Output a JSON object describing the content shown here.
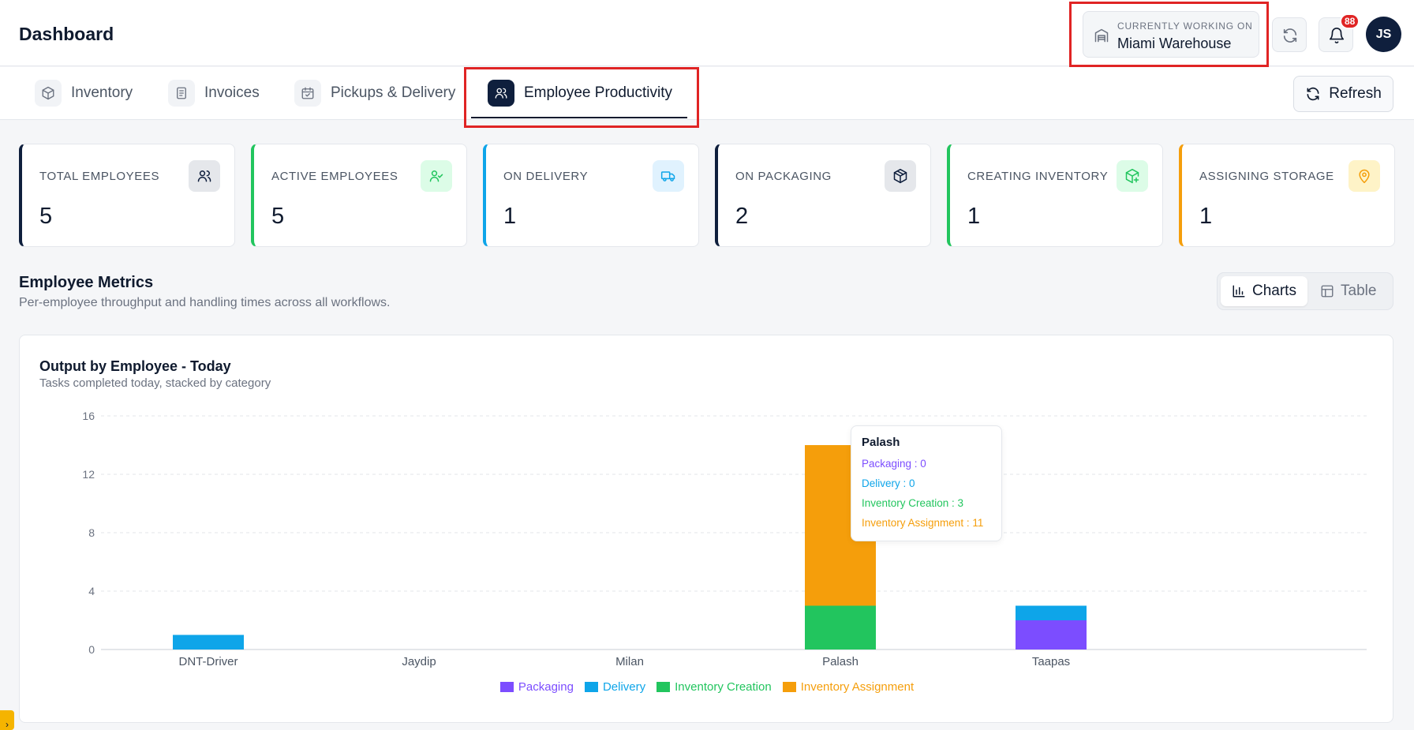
{
  "header": {
    "title": "Dashboard",
    "working_caption": "CURRENTLY WORKING ON",
    "working_value": "Miami Warehouse",
    "notification_count": "88",
    "avatar_initials": "JS"
  },
  "tabs": [
    {
      "label": "Inventory",
      "icon": "box-icon",
      "active": false
    },
    {
      "label": "Invoices",
      "icon": "document-icon",
      "active": false
    },
    {
      "label": "Pickups & Delivery",
      "icon": "calendar-check-icon",
      "active": false
    },
    {
      "label": "Employee Productivity",
      "icon": "users-icon",
      "active": true
    }
  ],
  "refresh_label": "Refresh",
  "stats": [
    {
      "label": "TOTAL EMPLOYEES",
      "value": "5",
      "accent": "#0f1f3d",
      "icon": "users-icon"
    },
    {
      "label": "ACTIVE EMPLOYEES",
      "value": "5",
      "accent": "#22c55e",
      "icon": "user-check-icon"
    },
    {
      "label": "ON DELIVERY",
      "value": "1",
      "accent": "#0ea5e9",
      "icon": "truck-icon"
    },
    {
      "label": "ON PACKAGING",
      "value": "2",
      "accent": "#0f1f3d",
      "icon": "package-icon"
    },
    {
      "label": "CREATING INVENTORY",
      "value": "1",
      "accent": "#22c55e",
      "icon": "package-plus-icon"
    },
    {
      "label": "ASSIGNING STORAGE",
      "value": "1",
      "accent": "#f59e0b",
      "icon": "map-pin-icon"
    }
  ],
  "section": {
    "title": "Employee Metrics",
    "subtitle": "Per-employee throughput and handling times across all workflows."
  },
  "view_toggle": {
    "charts_label": "Charts",
    "table_label": "Table",
    "selected": "Charts"
  },
  "chart_card": {
    "title": "Output by Employee - Today",
    "subtitle": "Tasks completed today, stacked by category"
  },
  "chart_data": {
    "type": "bar",
    "stacked": true,
    "categories": [
      "DNT-Driver",
      "Jaydip",
      "Milan",
      "Palash",
      "Taapas"
    ],
    "series": [
      {
        "name": "Packaging",
        "color": "#7c4dff",
        "values": [
          0,
          0,
          0,
          0,
          2
        ]
      },
      {
        "name": "Delivery",
        "color": "#0ea5e9",
        "values": [
          1,
          0,
          0,
          0,
          1
        ]
      },
      {
        "name": "Inventory Creation",
        "color": "#22c55e",
        "values": [
          0,
          0,
          0,
          3,
          0
        ]
      },
      {
        "name": "Inventory Assignment",
        "color": "#f59e0b",
        "values": [
          0,
          0,
          0,
          11,
          0
        ]
      }
    ],
    "ylim": [
      0,
      16
    ],
    "yticks": [
      "0",
      "4",
      "8",
      "12",
      "16"
    ],
    "grid": true,
    "legend": "bottom-center"
  },
  "tooltip": {
    "title": "Palash",
    "rows": [
      {
        "text": "Packaging : 0",
        "color": "#7c4dff"
      },
      {
        "text": "Delivery : 0",
        "color": "#0ea5e9"
      },
      {
        "text": "Inventory Creation : 3",
        "color": "#22c55e"
      },
      {
        "text": "Inventory Assignment : 11",
        "color": "#f59e0b"
      }
    ]
  },
  "side_handle_glyph": "›"
}
